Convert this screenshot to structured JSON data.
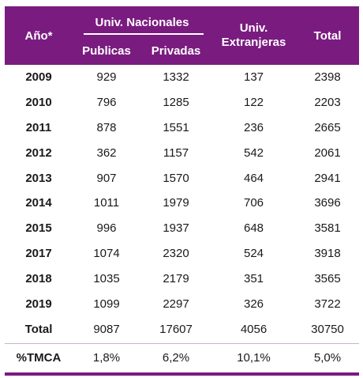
{
  "headers": {
    "year": "Año*",
    "nacionales": "Univ. Nacionales",
    "publicas": "Publicas",
    "privadas": "Privadas",
    "extranjeras_line1": "Univ.",
    "extranjeras_line2": "Extranjeras",
    "total": "Total"
  },
  "rows": [
    {
      "year": "2009",
      "publicas": "929",
      "privadas": "1332",
      "extranjeras": "137",
      "total": "2398"
    },
    {
      "year": "2010",
      "publicas": "796",
      "privadas": "1285",
      "extranjeras": "122",
      "total": "2203"
    },
    {
      "year": "2011",
      "publicas": "878",
      "privadas": "1551",
      "extranjeras": "236",
      "total": "2665"
    },
    {
      "year": "2012",
      "publicas": "362",
      "privadas": "1157",
      "extranjeras": "542",
      "total": "2061"
    },
    {
      "year": "2013",
      "publicas": "907",
      "privadas": "1570",
      "extranjeras": "464",
      "total": "2941"
    },
    {
      "year": "2014",
      "publicas": "1011",
      "privadas": "1979",
      "extranjeras": "706",
      "total": "3696"
    },
    {
      "year": "2015",
      "publicas": "996",
      "privadas": "1937",
      "extranjeras": "648",
      "total": "3581"
    },
    {
      "year": "2017",
      "publicas": "1074",
      "privadas": "2320",
      "extranjeras": "524",
      "total": "3918"
    },
    {
      "year": "2018",
      "publicas": "1035",
      "privadas": "2179",
      "extranjeras": "351",
      "total": "3565"
    },
    {
      "year": "2019",
      "publicas": "1099",
      "privadas": "2297",
      "extranjeras": "326",
      "total": "3722"
    }
  ],
  "total_row": {
    "label": "Total",
    "publicas": "9087",
    "privadas": "17607",
    "extranjeras": "4056",
    "total": "30750"
  },
  "tmca_row": {
    "label": "%TMCA",
    "publicas": "1,8%",
    "privadas": "6,2%",
    "extranjeras": "10,1%",
    "total": "5,0%"
  },
  "colors": {
    "header_bg": "#7a1b80",
    "header_text": "#ffffff"
  }
}
